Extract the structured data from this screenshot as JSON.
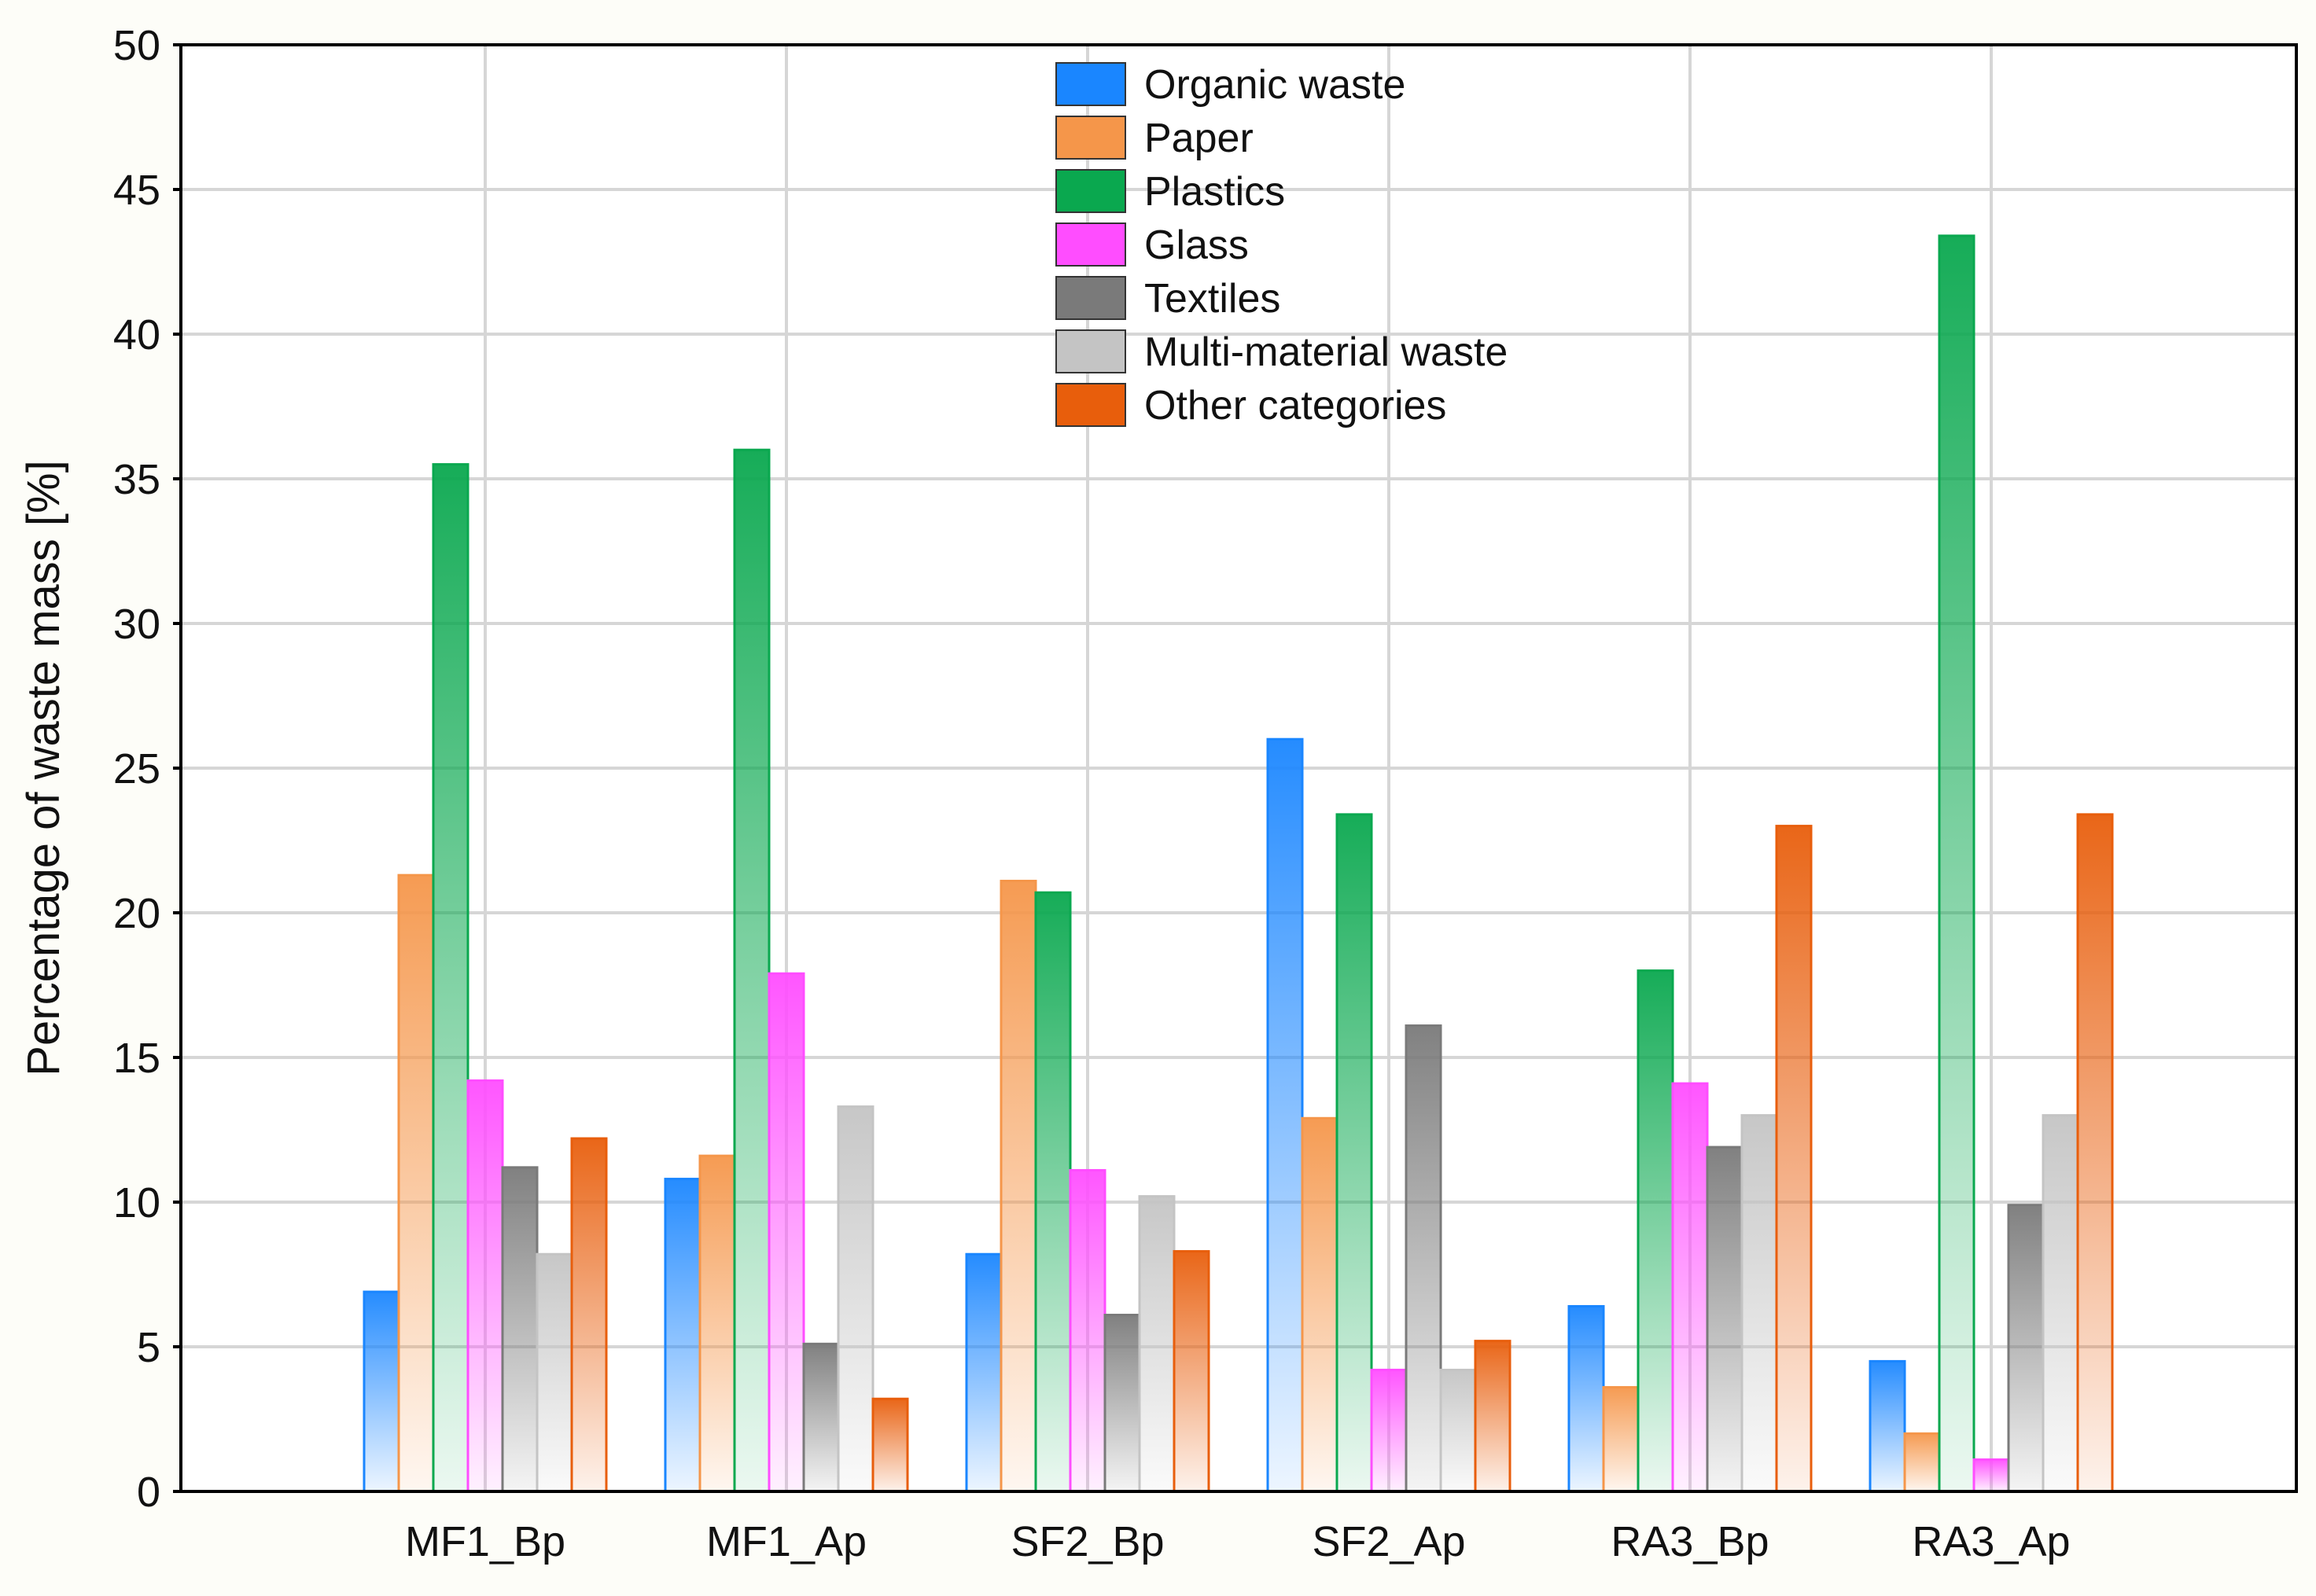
{
  "chart_data": {
    "type": "bar",
    "title": "",
    "xlabel": "",
    "ylabel": "Percentage of waste mass [%]",
    "ylim": [
      0,
      50
    ],
    "yticks": [
      0,
      5,
      10,
      15,
      20,
      25,
      30,
      35,
      40,
      45,
      50
    ],
    "grid": true,
    "legend_position": "top-center",
    "categories": [
      "MF1_Bp",
      "MF1_Ap",
      "SF2_Bp",
      "SF2_Ap",
      "RA3_Bp",
      "RA3_Ap"
    ],
    "series": [
      {
        "name": "Organic waste",
        "color": "#1a86ff",
        "values": [
          6.9,
          10.8,
          8.2,
          26.0,
          6.4,
          4.5
        ]
      },
      {
        "name": "Paper",
        "color": "#f5964a",
        "values": [
          21.3,
          11.6,
          21.1,
          12.9,
          3.6,
          2.0
        ]
      },
      {
        "name": "Plastics",
        "color": "#0aa84f",
        "values": [
          35.5,
          36.0,
          20.7,
          23.4,
          18.0,
          43.4
        ]
      },
      {
        "name": "Glass",
        "color": "#ff4dff",
        "values": [
          14.2,
          17.9,
          11.1,
          4.2,
          14.1,
          1.1
        ]
      },
      {
        "name": "Textiles",
        "color": "#7a7a7a",
        "values": [
          11.2,
          5.1,
          6.1,
          16.1,
          11.9,
          9.9
        ]
      },
      {
        "name": "Multi-material waste",
        "color": "#c4c4c4",
        "values": [
          8.2,
          13.3,
          10.2,
          4.2,
          13.0,
          13.0
        ]
      },
      {
        "name": "Other categories",
        "color": "#e85e0c",
        "values": [
          12.2,
          3.2,
          8.3,
          5.2,
          23.0,
          23.4
        ]
      }
    ]
  }
}
